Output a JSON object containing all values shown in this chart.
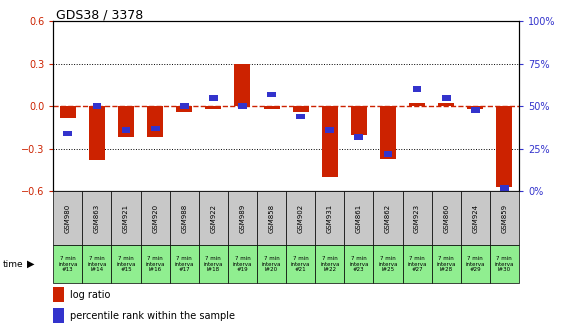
{
  "title": "GDS38 / 3378",
  "samples": [
    "GSM980",
    "GSM863",
    "GSM921",
    "GSM920",
    "GSM988",
    "GSM922",
    "GSM989",
    "GSM858",
    "GSM902",
    "GSM931",
    "GSM861",
    "GSM862",
    "GSM923",
    "GSM860",
    "GSM924",
    "GSM859"
  ],
  "intervals": [
    "#13",
    "l#14",
    "#15",
    "l#16",
    "#17",
    "l#18",
    "#19",
    "l#20",
    "#21",
    "l#22",
    "#23",
    "l#25",
    "#27",
    "l#28",
    "#29",
    "l#30"
  ],
  "log_ratio": [
    -0.08,
    -0.38,
    -0.22,
    -0.22,
    -0.04,
    -0.02,
    0.3,
    -0.02,
    -0.04,
    -0.5,
    -0.2,
    -0.37,
    0.02,
    0.02,
    -0.02,
    -0.57
  ],
  "percentile": [
    34,
    50,
    36,
    37,
    50,
    55,
    50,
    57,
    44,
    36,
    32,
    22,
    60,
    55,
    48,
    2
  ],
  "ylim_left": [
    -0.6,
    0.6
  ],
  "ylim_right": [
    0,
    100
  ],
  "yticks_left": [
    -0.6,
    -0.3,
    0.0,
    0.3,
    0.6
  ],
  "yticks_right": [
    0,
    25,
    50,
    75,
    100
  ],
  "bar_color_red": "#cc2200",
  "bar_color_blue": "#3333cc",
  "bg_color": "#ffffff",
  "zero_line_color": "#cc2200",
  "green_bg": "#90ee90",
  "gray_bg": "#c8c8c8",
  "title_fontsize": 9,
  "tick_fontsize": 7,
  "sample_fontsize": 5,
  "interval_fontsize": 4
}
